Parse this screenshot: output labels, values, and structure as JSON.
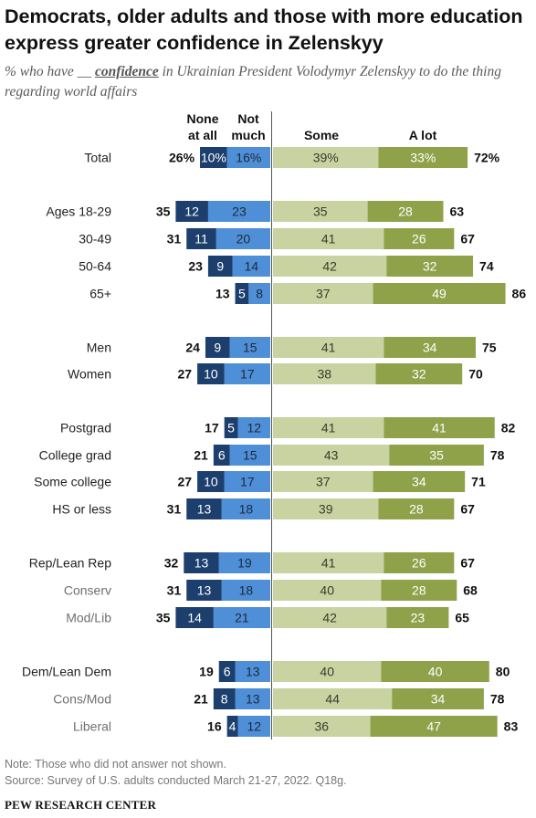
{
  "title": "Democrats, older adults and those with more education express greater confidence in Zelenskyy",
  "subtitle": {
    "prefix": "% who have",
    "blank": "__",
    "keyword": "confidence",
    "suffix": "in Ukrainian President Volodymyr Zelenskyy to do the thing regarding world affairs"
  },
  "chart_data": {
    "type": "bar",
    "orientation": "horizontal-diverging",
    "column_headers": {
      "none_at_all": "None at all",
      "not_much": "Not much",
      "some": "Some",
      "a_lot": "A lot"
    },
    "series": [
      {
        "name": "None at all",
        "color": "#1d3f6e"
      },
      {
        "name": "Not much",
        "color": "#4f8fd8"
      },
      {
        "name": "Some",
        "color": "#c9d3a2"
      },
      {
        "name": "A lot",
        "color": "#8fa24a"
      }
    ],
    "rows": [
      {
        "label": "Total",
        "style": "main",
        "none": 10,
        "not_much": 16,
        "neg_total": 26,
        "some": 39,
        "a_lot": 33,
        "pos_total": 72,
        "percent": true
      },
      {
        "label": "Ages 18-29",
        "style": "main",
        "none": 12,
        "not_much": 23,
        "neg_total": 35,
        "some": 35,
        "a_lot": 28,
        "pos_total": 63
      },
      {
        "label": "30-49",
        "style": "main",
        "none": 11,
        "not_much": 20,
        "neg_total": 31,
        "some": 41,
        "a_lot": 26,
        "pos_total": 67
      },
      {
        "label": "50-64",
        "style": "main",
        "none": 9,
        "not_much": 14,
        "neg_total": 23,
        "some": 42,
        "a_lot": 32,
        "pos_total": 74
      },
      {
        "label": "65+",
        "style": "main",
        "none": 5,
        "not_much": 8,
        "neg_total": 13,
        "some": 37,
        "a_lot": 49,
        "pos_total": 86
      },
      {
        "label": "Men",
        "style": "main",
        "none": 9,
        "not_much": 15,
        "neg_total": 24,
        "some": 41,
        "a_lot": 34,
        "pos_total": 75
      },
      {
        "label": "Women",
        "style": "main",
        "none": 10,
        "not_much": 17,
        "neg_total": 27,
        "some": 38,
        "a_lot": 32,
        "pos_total": 70
      },
      {
        "label": "Postgrad",
        "style": "main",
        "none": 5,
        "not_much": 12,
        "neg_total": 17,
        "some": 41,
        "a_lot": 41,
        "pos_total": 82
      },
      {
        "label": "College grad",
        "style": "main",
        "none": 6,
        "not_much": 15,
        "neg_total": 21,
        "some": 43,
        "a_lot": 35,
        "pos_total": 78
      },
      {
        "label": "Some college",
        "style": "main",
        "none": 10,
        "not_much": 17,
        "neg_total": 27,
        "some": 37,
        "a_lot": 34,
        "pos_total": 71
      },
      {
        "label": "HS or less",
        "style": "main",
        "none": 13,
        "not_much": 18,
        "neg_total": 31,
        "some": 39,
        "a_lot": 28,
        "pos_total": 67
      },
      {
        "label": "Rep/Lean Rep",
        "style": "main",
        "none": 13,
        "not_much": 19,
        "neg_total": 32,
        "some": 41,
        "a_lot": 26,
        "pos_total": 67
      },
      {
        "label": "Conserv",
        "style": "sub",
        "none": 13,
        "not_much": 18,
        "neg_total": 31,
        "some": 40,
        "a_lot": 28,
        "pos_total": 68
      },
      {
        "label": "Mod/Lib",
        "style": "sub",
        "none": 14,
        "not_much": 21,
        "neg_total": 35,
        "some": 42,
        "a_lot": 23,
        "pos_total": 65
      },
      {
        "label": "Dem/Lean Dem",
        "style": "main",
        "none": 6,
        "not_much": 13,
        "neg_total": 19,
        "some": 40,
        "a_lot": 40,
        "pos_total": 80
      },
      {
        "label": "Cons/Mod",
        "style": "sub",
        "none": 8,
        "not_much": 13,
        "neg_total": 21,
        "some": 44,
        "a_lot": 34,
        "pos_total": 78
      },
      {
        "label": "Liberal",
        "style": "sub",
        "none": 4,
        "not_much": 12,
        "neg_total": 16,
        "some": 36,
        "a_lot": 47,
        "pos_total": 83
      }
    ]
  },
  "notes": {
    "note": "Note: Those who did not answer not shown.",
    "source": "Source: Survey of U.S. adults conducted March 21-27, 2022. Q18g."
  },
  "brand": "PEW RESEARCH CENTER"
}
